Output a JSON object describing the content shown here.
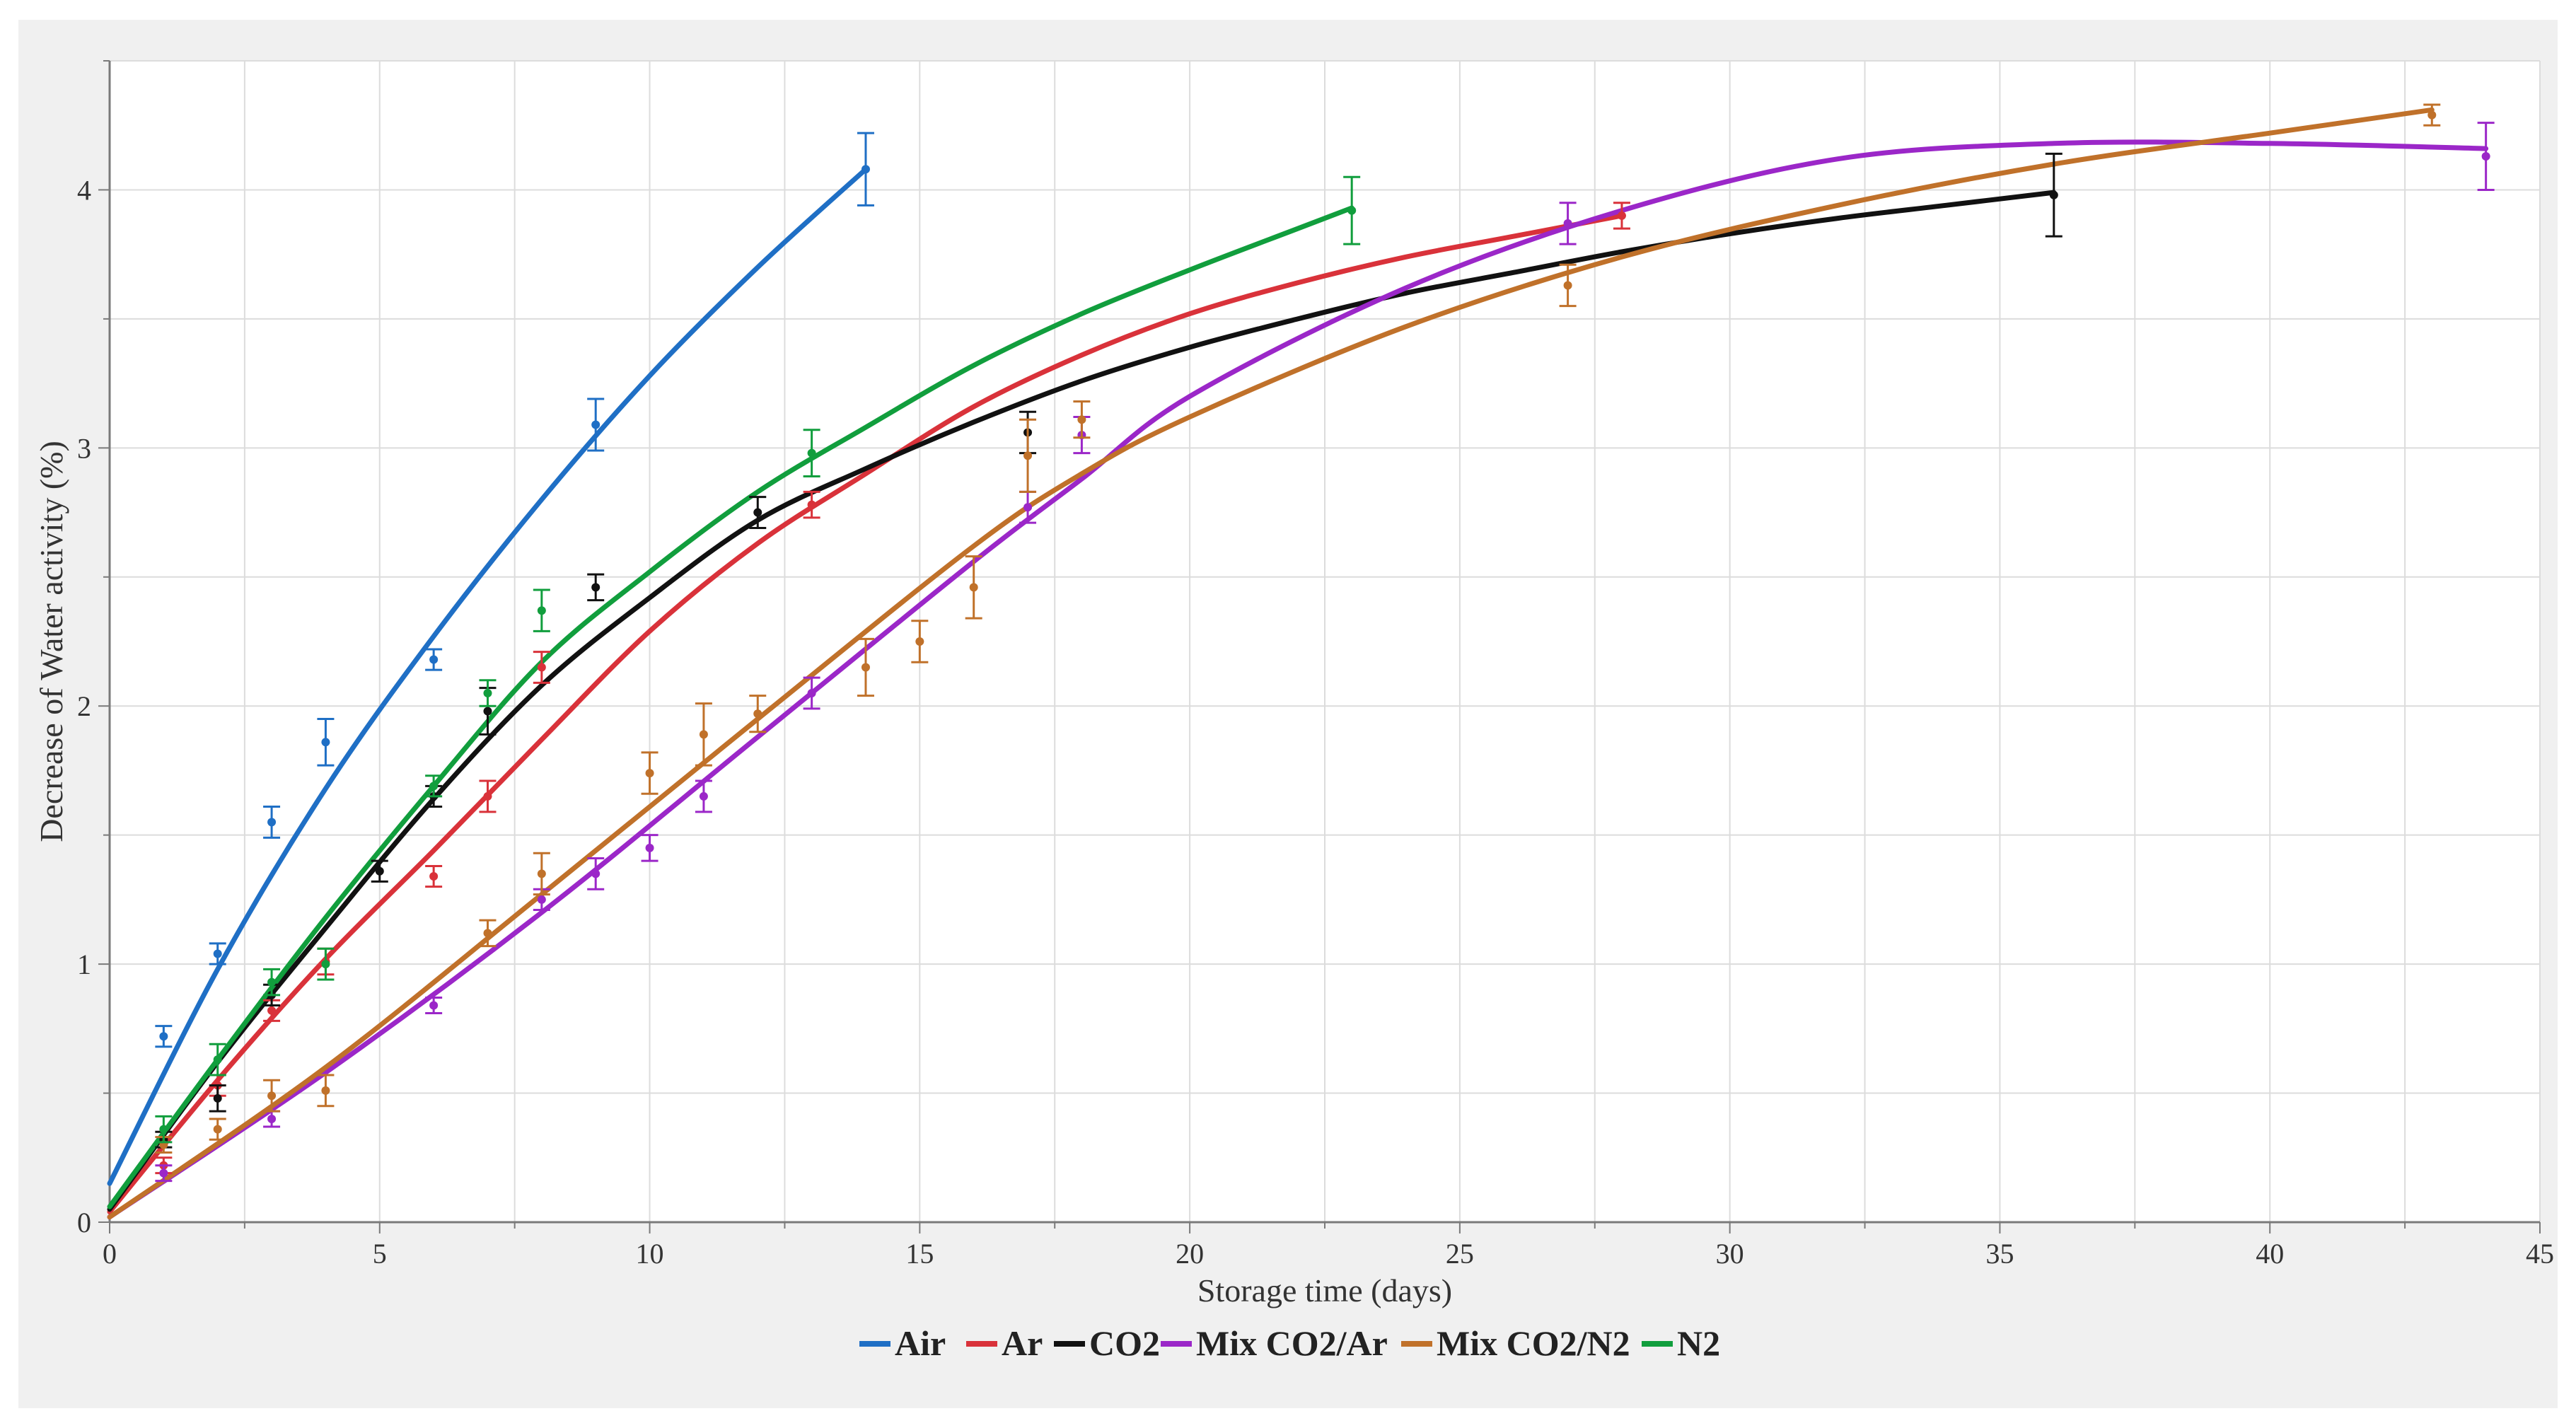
{
  "chart_data": {
    "type": "line",
    "title": "",
    "xlabel": "Storage time (days)",
    "ylabel": "Decrease of Water activity (%)",
    "xlim": [
      0,
      45
    ],
    "ylim": [
      0,
      4.5
    ],
    "xticks": [
      0,
      5,
      10,
      15,
      20,
      25,
      30,
      35,
      40,
      45
    ],
    "yticks": [
      0,
      1,
      2,
      3,
      4
    ],
    "grid": true,
    "legend_position": "bottom-center",
    "series": [
      {
        "name": "Air",
        "color": "#1f6fc5",
        "x": [
          1,
          2,
          3,
          4,
          6,
          9,
          14
        ],
        "values": [
          0.72,
          1.04,
          1.55,
          1.86,
          2.18,
          3.09,
          4.08
        ],
        "errors": [
          0.04,
          0.04,
          0.06,
          0.09,
          0.04,
          0.1,
          0.14
        ],
        "fit_x": [
          0,
          2,
          4,
          6,
          8,
          10,
          12,
          14
        ],
        "fit_y": [
          0.15,
          0.98,
          1.68,
          2.27,
          2.8,
          3.28,
          3.7,
          4.08
        ]
      },
      {
        "name": "Ar",
        "color": "#d9323a",
        "x": [
          1,
          2,
          3,
          4,
          6,
          7,
          8,
          13,
          28
        ],
        "values": [
          0.22,
          0.53,
          0.82,
          1.01,
          1.34,
          1.65,
          2.15,
          2.78,
          3.9
        ],
        "errors": [
          0.03,
          0.04,
          0.04,
          0.05,
          0.04,
          0.06,
          0.06,
          0.05,
          0.05
        ],
        "fit_x": [
          0,
          2,
          4,
          6,
          8,
          10,
          12,
          14,
          16,
          18,
          20,
          22,
          24,
          26,
          28
        ],
        "fit_y": [
          0.04,
          0.55,
          1.02,
          1.44,
          1.87,
          2.29,
          2.63,
          2.9,
          3.16,
          3.36,
          3.52,
          3.64,
          3.74,
          3.82,
          3.9
        ]
      },
      {
        "name": "CO2",
        "color": "#111111",
        "x": [
          1,
          2,
          3,
          5,
          6,
          7,
          9,
          12,
          17,
          36
        ],
        "values": [
          0.32,
          0.48,
          0.88,
          1.36,
          1.65,
          1.98,
          2.46,
          2.75,
          3.06,
          3.98
        ],
        "errors": [
          0.03,
          0.05,
          0.04,
          0.04,
          0.04,
          0.09,
          0.05,
          0.06,
          0.08,
          0.16
        ],
        "fit_x": [
          0,
          2,
          4,
          6,
          8,
          10,
          12,
          14,
          16,
          18,
          20,
          22,
          24,
          26,
          28,
          30,
          32,
          34,
          36
        ],
        "fit_y": [
          0.05,
          0.62,
          1.14,
          1.64,
          2.08,
          2.42,
          2.72,
          2.92,
          3.1,
          3.26,
          3.39,
          3.5,
          3.6,
          3.68,
          3.76,
          3.83,
          3.89,
          3.94,
          3.99
        ]
      },
      {
        "name": "Mix CO2/Ar",
        "color": "#9b27c8",
        "x": [
          1,
          3,
          6,
          8,
          9,
          10,
          11,
          13,
          17,
          18,
          27,
          44
        ],
        "values": [
          0.19,
          0.4,
          0.84,
          1.25,
          1.35,
          1.45,
          1.65,
          2.05,
          2.77,
          3.05,
          3.87,
          4.13
        ],
        "errors": [
          0.03,
          0.03,
          0.03,
          0.04,
          0.06,
          0.05,
          0.06,
          0.06,
          0.06,
          0.07,
          0.08,
          0.13
        ],
        "fit_x": [
          0,
          4,
          8,
          12,
          16,
          18,
          20,
          24,
          28,
          32,
          36,
          40,
          44
        ],
        "fit_y": [
          0.02,
          0.58,
          1.2,
          1.88,
          2.56,
          2.88,
          3.2,
          3.62,
          3.92,
          4.12,
          4.18,
          4.18,
          4.16
        ]
      },
      {
        "name": "Mix CO2/N2",
        "color": "#c0712a",
        "x": [
          1,
          2,
          3,
          4,
          7,
          8,
          10,
          11,
          12,
          14,
          15,
          16,
          17,
          18,
          27,
          43
        ],
        "values": [
          0.3,
          0.36,
          0.49,
          0.51,
          1.12,
          1.35,
          1.74,
          1.89,
          1.97,
          2.15,
          2.25,
          2.46,
          2.97,
          3.11,
          3.63,
          4.29
        ],
        "errors": [
          0.03,
          0.04,
          0.06,
          0.06,
          0.05,
          0.08,
          0.08,
          0.12,
          0.07,
          0.11,
          0.08,
          0.12,
          0.14,
          0.07,
          0.08,
          0.04
        ],
        "fit_x": [
          0,
          4,
          8,
          12,
          16,
          18,
          20,
          24,
          28,
          32,
          36,
          40,
          43
        ],
        "fit_y": [
          0.02,
          0.6,
          1.27,
          1.95,
          2.62,
          2.9,
          3.12,
          3.47,
          3.74,
          3.94,
          4.1,
          4.22,
          4.31
        ]
      },
      {
        "name": "N2",
        "color": "#119e3d",
        "x": [
          1,
          2,
          3,
          4,
          6,
          7,
          8,
          13,
          23
        ],
        "values": [
          0.36,
          0.63,
          0.93,
          1.0,
          1.69,
          2.05,
          2.37,
          2.98,
          3.92
        ],
        "errors": [
          0.05,
          0.06,
          0.05,
          0.06,
          0.04,
          0.05,
          0.08,
          0.09,
          0.13
        ],
        "fit_x": [
          0,
          2,
          4,
          6,
          8,
          10,
          12,
          14,
          16,
          18,
          20,
          22,
          23
        ],
        "fit_y": [
          0.06,
          0.63,
          1.18,
          1.69,
          2.17,
          2.52,
          2.83,
          3.08,
          3.32,
          3.52,
          3.69,
          3.85,
          3.93
        ]
      }
    ]
  }
}
